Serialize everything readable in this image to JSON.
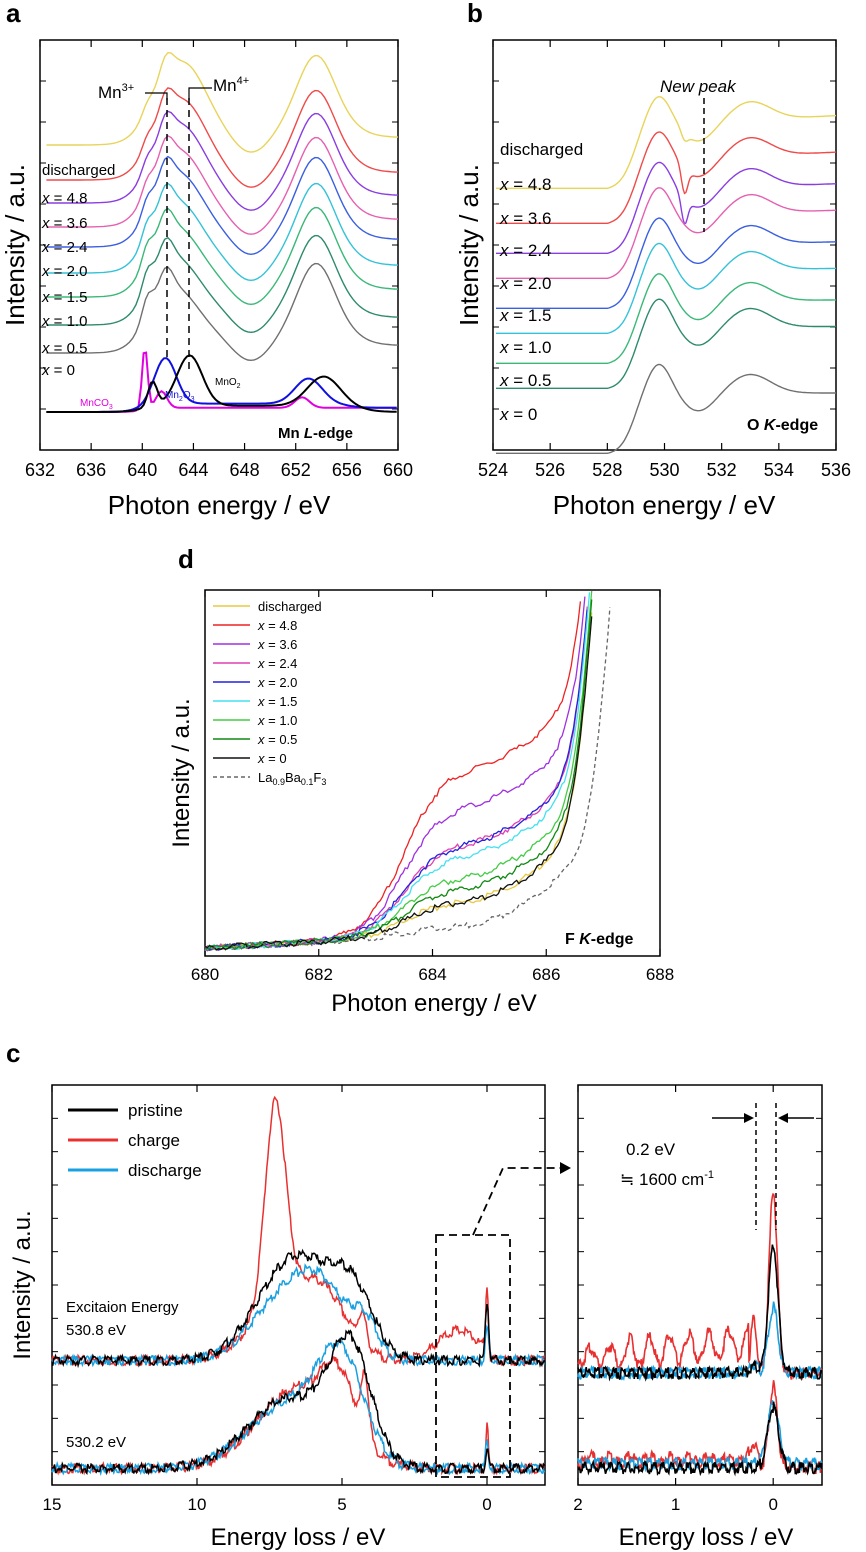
{
  "panels": {
    "a": {
      "label": "a",
      "edge_label_el": "Mn ",
      "edge_label_shell": "L",
      "edge_label_suffix": "-edge",
      "xlabel": "Photon energy / eV",
      "ylabel": "Intensity / a.u.",
      "mn3": "Mn",
      "mn3_sup": "3+",
      "mn4": "Mn",
      "mn4_sup": "4+",
      "ref_labels": {
        "mnco3": "MnCO",
        "mnco3_sub": "3",
        "mn2o3": "Mn",
        "mn2o3_sub1": "2",
        "mn2o3_mid": "O",
        "mn2o3_sub2": "3",
        "mno2": "MnO",
        "mno2_sub": "2"
      }
    },
    "b": {
      "label": "b",
      "edge_label_el": "O ",
      "edge_label_shell": "K",
      "edge_label_suffix": "-edge",
      "xlabel": "Photon energy / eV",
      "ylabel": "Intensity / a.u.",
      "new_peak": "New peak"
    },
    "d": {
      "label": "d",
      "edge_label_el": "F ",
      "edge_label_shell": "K",
      "edge_label_suffix": "-edge",
      "xlabel": "Photon energy / eV",
      "ylabel": "Intensity / a.u.",
      "legend_ref": "La",
      "legend_ref_sub1": "0.9",
      "legend_ref_mid": "Ba",
      "legend_ref_sub2": "0.1",
      "legend_ref_end": "F",
      "legend_ref_sub3": "3"
    },
    "c": {
      "label": "c",
      "xlabel_left": "Energy loss / eV",
      "xlabel_right": "Energy loss / eV",
      "ylabel": "Intensity / a.u.",
      "excitation_line1": "Excitaion Energy",
      "excitation_line2": "530.8 eV",
      "excitation_low": "530.2 eV",
      "gap_label1": "0.2 eV",
      "gap_label2": "≒ 1600 cm",
      "gap_label2_sup": "-1",
      "legend": [
        "pristine",
        "charge",
        "discharge"
      ]
    }
  },
  "series_labels": [
    {
      "prefix": "",
      "text": "discharged"
    },
    {
      "prefix": "x",
      "text": " = 4.8"
    },
    {
      "prefix": "x",
      "text": " = 3.6"
    },
    {
      "prefix": "x",
      "text": " = 2.4"
    },
    {
      "prefix": "x",
      "text": " = 2.0"
    },
    {
      "prefix": "x",
      "text": " = 1.5"
    },
    {
      "prefix": "x",
      "text": " = 1.0"
    },
    {
      "prefix": "x",
      "text": " = 0.5"
    },
    {
      "prefix": "x",
      "text": " = 0"
    }
  ],
  "chart_data": [
    {
      "panel": "a",
      "type": "line",
      "title": "Mn L-edge",
      "xlabel": "Photon energy / eV",
      "ylabel": "Intensity / a.u.",
      "xlim": [
        632,
        660
      ],
      "ylim": [
        0,
        10
      ],
      "xticks": [
        632,
        636,
        640,
        644,
        648,
        652,
        656,
        660
      ],
      "series": [
        {
          "name": "discharged",
          "color": "#e8d45a",
          "offset": 8.0
        },
        {
          "name": "x = 4.8",
          "color": "#ef4a4a",
          "offset": 7.2
        },
        {
          "name": "x = 3.6",
          "color": "#8a3de0",
          "offset": 6.5
        },
        {
          "name": "x = 2.4",
          "color": "#e660b0",
          "offset": 5.8
        },
        {
          "name": "x = 2.0",
          "color": "#3a5fe0",
          "offset": 5.1
        },
        {
          "name": "x = 1.5",
          "color": "#34c2d8",
          "offset": 4.3
        },
        {
          "name": "x = 1.0",
          "color": "#3ab878",
          "offset": 3.5
        },
        {
          "name": "x = 0.5",
          "color": "#2e8a6e",
          "offset": 2.7
        },
        {
          "name": "x = 0",
          "color": "#707070",
          "offset": 1.9
        }
      ],
      "peaks_eV": [
        640.5,
        642.0,
        643.6,
        653.6
      ],
      "markers": {
        "Mn3+": 642.0,
        "Mn4+": 643.6
      },
      "references": [
        {
          "name": "MnCO3",
          "color": "#e000e0"
        },
        {
          "name": "Mn2O3",
          "color": "#1010e0"
        },
        {
          "name": "MnO2",
          "color": "#000000"
        }
      ]
    },
    {
      "panel": "b",
      "type": "line",
      "title": "O K-edge",
      "xlabel": "Photon energy / eV",
      "ylabel": "Intensity / a.u.",
      "xlim": [
        524,
        536
      ],
      "ylim": [
        0,
        10
      ],
      "xticks": [
        524,
        526,
        528,
        530,
        532,
        534,
        536
      ],
      "series": [
        {
          "name": "discharged",
          "color": "#e8d45a",
          "offset": 8.6
        },
        {
          "name": "x = 4.8",
          "color": "#ef4a4a",
          "offset": 7.7
        },
        {
          "name": "x = 3.6",
          "color": "#8a3de0",
          "offset": 6.9
        },
        {
          "name": "x = 2.4",
          "color": "#e660b0",
          "offset": 6.1
        },
        {
          "name": "x = 2.0",
          "color": "#3a5fe0",
          "offset": 5.3
        },
        {
          "name": "x = 1.5",
          "color": "#34c2d8",
          "offset": 4.5
        },
        {
          "name": "x = 1.0",
          "color": "#3ab878",
          "offset": 3.7
        },
        {
          "name": "x = 0.5",
          "color": "#2e8a6e",
          "offset": 2.9
        },
        {
          "name": "x = 0",
          "color": "#707070",
          "offset": 1.4
        }
      ],
      "new_peak_eV": 531.0
    },
    {
      "panel": "d",
      "type": "line",
      "title": "F K-edge",
      "xlabel": "Photon energy / eV",
      "ylabel": "Intensity / a.u.",
      "xlim": [
        680,
        688
      ],
      "xticks": [
        680,
        682,
        684,
        686,
        688
      ],
      "series": [
        {
          "name": "discharged",
          "color": "#e8c840",
          "shoulder": 0.2
        },
        {
          "name": "x = 4.8",
          "color": "#ee2222",
          "shoulder": 1.0
        },
        {
          "name": "x = 3.6",
          "color": "#a030e0",
          "shoulder": 0.78
        },
        {
          "name": "x = 2.4",
          "color": "#e040b0",
          "shoulder": 0.55
        },
        {
          "name": "x = 2.0",
          "color": "#2222dd",
          "shoulder": 0.55
        },
        {
          "name": "x = 1.5",
          "color": "#44e0f0",
          "shoulder": 0.48
        },
        {
          "name": "x = 1.0",
          "color": "#44cc44",
          "shoulder": 0.35
        },
        {
          "name": "x = 0.5",
          "color": "#118811",
          "shoulder": 0.28
        },
        {
          "name": "x = 0",
          "color": "#111111",
          "shoulder": 0.2
        },
        {
          "name": "La0.9Ba0.1F3",
          "color": "#666666",
          "dashed": true,
          "shoulder": 0.05
        }
      ]
    },
    {
      "panel": "c",
      "type": "line",
      "xlabel": "Energy loss / eV",
      "ylabel": "Intensity / a.u.",
      "left_xlim": [
        15,
        -2
      ],
      "left_xticks": [
        15,
        10,
        5,
        0
      ],
      "right_xlim": [
        2,
        -0.5
      ],
      "right_xticks": [
        2,
        1,
        0
      ],
      "excitation_energies_eV": [
        530.8,
        530.2
      ],
      "series": [
        {
          "name": "pristine",
          "color": "#000000"
        },
        {
          "name": "charge",
          "color": "#e83030"
        },
        {
          "name": "discharge",
          "color": "#1aa0e0"
        }
      ],
      "peaks_eV": {
        "charge_530.8": 7.3,
        "all_530.2": 5.0,
        "elastic": 0
      },
      "vibrational_spacing_eV": 0.2,
      "vibrational_spacing_cm": 1600
    }
  ]
}
